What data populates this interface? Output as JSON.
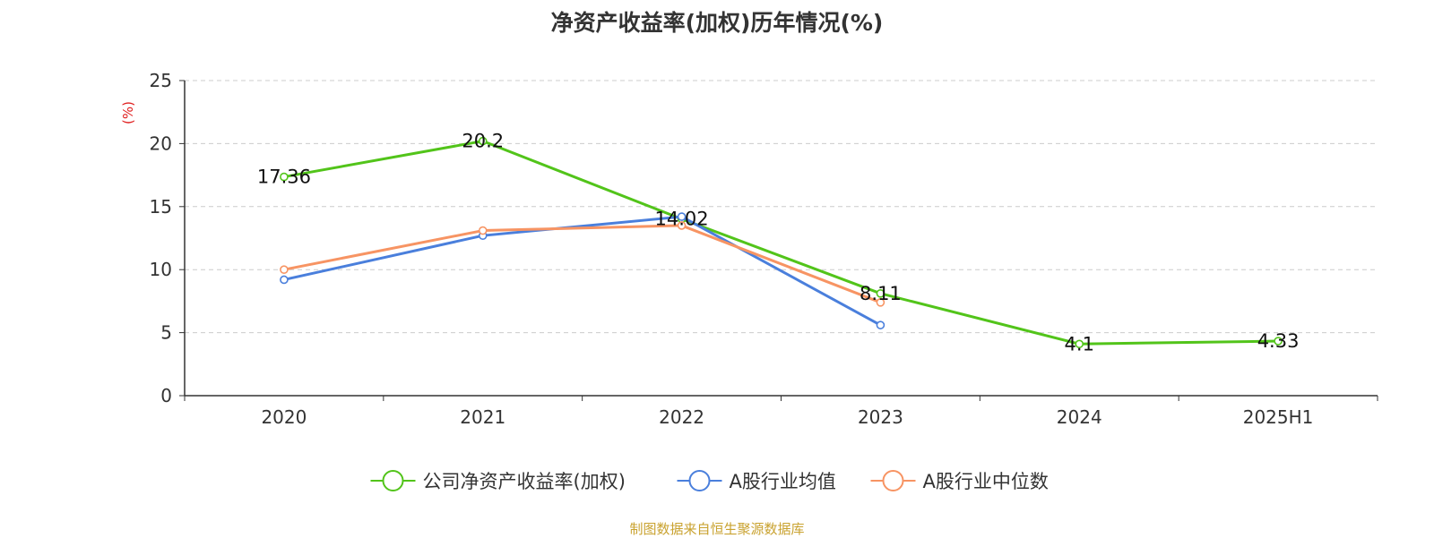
{
  "chart_data": {
    "type": "line",
    "title": "净资产收益率(加权)历年情况(%)",
    "ylabel": "(%)",
    "xlabel": "",
    "categories": [
      "2020",
      "2021",
      "2022",
      "2023",
      "2024",
      "2025H1"
    ],
    "ylim": [
      0,
      25
    ],
    "yticks": [
      0,
      5,
      10,
      15,
      20,
      25
    ],
    "grid": true,
    "legend_position": "bottom-center",
    "series": [
      {
        "name": "公司净资产收益率(加权)",
        "color": "#52c41a",
        "values": [
          17.36,
          20.2,
          14.02,
          8.11,
          4.1,
          4.33
        ],
        "labels": [
          "17.36",
          "20.2",
          "14.02",
          "8.11",
          "4.1",
          "4.33"
        ]
      },
      {
        "name": "A股行业均值",
        "color": "#4a7fdc",
        "values": [
          9.2,
          12.7,
          14.2,
          5.6,
          null,
          null
        ]
      },
      {
        "name": "A股行业中位数",
        "color": "#f79463",
        "values": [
          10.0,
          13.1,
          13.5,
          7.4,
          null,
          null
        ]
      }
    ]
  },
  "source_text": "制图数据来自恒生聚源数据库",
  "ylabel_color": "#e02020"
}
